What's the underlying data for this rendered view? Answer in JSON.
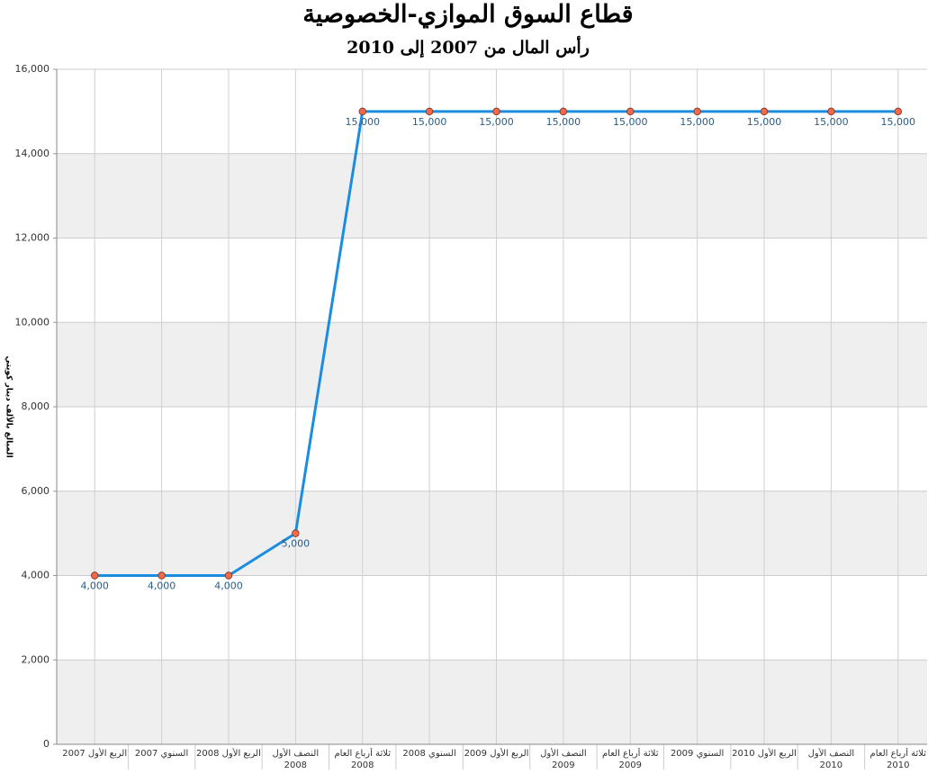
{
  "chart_data": {
    "type": "line",
    "title": "قطاع السوق الموازي-الخصوصية",
    "subtitle": "رأس المال من 2007 إلى 2010",
    "y_label": "المبالغ بالألف دينار كويتي",
    "categories": [
      "الربع الأول 2007",
      "السنوي 2007",
      "الربع الأول 2008",
      "النصف الأول 2008",
      "ثلاثة أرباع العام 2008",
      "السنوي 2008",
      "الربع الأول 2009",
      "النصف الأول 2009",
      "ثلاثة أرباع العام 2009",
      "السنوي 2009",
      "الربع الأول 2010",
      "النصف الأول 2010",
      "ثلاثة أرباع العام 2010"
    ],
    "values": [
      4000,
      4000,
      4000,
      5000,
      15000,
      15000,
      15000,
      15000,
      15000,
      15000,
      15000,
      15000,
      15000
    ],
    "value_labels": [
      "4,000",
      "4,000",
      "4,000",
      "5,000",
      "15,000",
      "15,000",
      "15,000",
      "15,000",
      "15,000",
      "15,000",
      "15,000",
      "15,000",
      "15,000"
    ],
    "color": "#1b8de0",
    "marker_color": "#ef6a4b",
    "ylim": [
      0,
      16000
    ],
    "yticks": [
      0,
      {
        "value": 2000,
        "label": "2,000"
      },
      {
        "value": 4000,
        "label": "4,000"
      },
      {
        "value": 6000,
        "label": "6,000"
      },
      {
        "value": 8000,
        "label": "8,000"
      },
      {
        "value": 10000,
        "label": "10,000"
      },
      {
        "value": 12000,
        "label": "12,000"
      },
      {
        "value": 14000,
        "label": "14,000"
      },
      {
        "value": 16000,
        "label": "16,000"
      }
    ],
    "grid": true
  }
}
